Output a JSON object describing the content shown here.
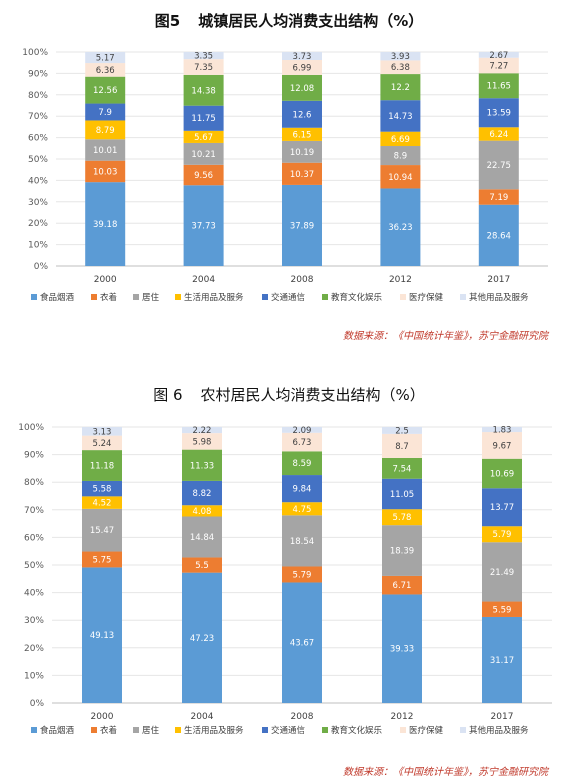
{
  "charts": [
    {
      "figure_label": "图5",
      "title": "城镇居民人均消费支出结构（%）",
      "source": "数据来源：《中国统计年鉴》，苏宁金融研究院"
    },
    {
      "figure_label": "图 6",
      "title": "农村居民人均消费支出结构（%）",
      "source": "数据来源：《中国统计年鉴》，苏宁金融研究院"
    }
  ],
  "colors": {
    "食品烟酒": "#5b9bd5",
    "衣着": "#ed7d31",
    "居住": "#a5a5a5",
    "生活用品及服务": "#ffc000",
    "交通通信": "#4472c4",
    "教育文化娱乐": "#70ad47",
    "医疗保健": "#fbe5d6",
    "其他用品及服务": "#dae3f3"
  },
  "chart_data": [
    {
      "type": "bar",
      "stacked": true,
      "title": "城镇居民人均消费支出结构（%）",
      "categories": [
        "2000",
        "2004",
        "2008",
        "2012",
        "2017"
      ],
      "ylim": [
        0,
        100
      ],
      "yticks": [
        "0%",
        "10%",
        "20%",
        "30%",
        "40%",
        "50%",
        "60%",
        "70%",
        "80%",
        "90%",
        "100%"
      ],
      "legend_position": "bottom",
      "series": [
        {
          "name": "食品烟酒",
          "values": [
            39.18,
            37.73,
            37.89,
            36.23,
            28.64
          ],
          "labels": [
            "39.18",
            "37.73",
            "37.89",
            "36.23",
            "28.64"
          ]
        },
        {
          "name": "衣着",
          "values": [
            10.03,
            9.56,
            10.37,
            10.94,
            7.19
          ],
          "labels": [
            "10.03",
            "9.56",
            "10.37",
            "10.94",
            "7.19"
          ]
        },
        {
          "name": "居住",
          "values": [
            10.01,
            10.21,
            10.19,
            8.9,
            22.75
          ],
          "labels": [
            "10.01",
            "10.21",
            "10.19",
            "8.9",
            "22.75"
          ]
        },
        {
          "name": "生活用品及服务",
          "values": [
            8.79,
            5.67,
            6.15,
            6.69,
            6.24
          ],
          "labels": [
            "8.79",
            "5.67",
            "6.15",
            "6.69",
            "6.24"
          ]
        },
        {
          "name": "交通通信",
          "values": [
            7.9,
            11.75,
            12.6,
            14.73,
            13.59
          ],
          "labels": [
            "7.9",
            "11.75",
            "12.6",
            "14.73",
            "13.59"
          ]
        },
        {
          "name": "教育文化娱乐",
          "values": [
            12.56,
            14.38,
            12.08,
            12.2,
            11.65
          ],
          "labels": [
            "12.56",
            "14.38",
            "12.08",
            "12.2",
            "11.65"
          ]
        },
        {
          "name": "医疗保健",
          "values": [
            6.36,
            7.35,
            6.99,
            6.38,
            7.27
          ],
          "labels": [
            "6.36",
            "7.35",
            "6.99",
            "6.38",
            "7.27"
          ]
        },
        {
          "name": "其他用品及服务",
          "values": [
            5.17,
            3.35,
            3.73,
            3.93,
            2.67
          ],
          "labels": [
            "5.17",
            "3.35",
            "3.73",
            "3.93",
            "2.67"
          ]
        }
      ]
    },
    {
      "type": "bar",
      "stacked": true,
      "title": "农村居民人均消费支出结构（%）",
      "categories": [
        "2000",
        "2004",
        "2008",
        "2012",
        "2017"
      ],
      "ylim": [
        0,
        100
      ],
      "yticks": [
        "0%",
        "10%",
        "20%",
        "30%",
        "40%",
        "50%",
        "60%",
        "70%",
        "80%",
        "90%",
        "100%"
      ],
      "legend_position": "bottom",
      "series": [
        {
          "name": "食品烟酒",
          "values": [
            49.13,
            47.23,
            43.67,
            39.33,
            31.17
          ],
          "labels": [
            "49.13",
            "47.23",
            "43.67",
            "39.33",
            "31.17"
          ]
        },
        {
          "name": "衣着",
          "values": [
            5.75,
            5.5,
            5.79,
            6.71,
            5.59
          ],
          "labels": [
            "5.75",
            "5.5",
            "5.79",
            "6.71",
            "5.59"
          ]
        },
        {
          "name": "居住",
          "values": [
            15.47,
            14.84,
            18.54,
            18.39,
            21.49
          ],
          "labels": [
            "15.47",
            "14.84",
            "18.54",
            "18.39",
            "21.49"
          ]
        },
        {
          "name": "生活用品及服务",
          "values": [
            4.52,
            4.08,
            4.75,
            5.78,
            5.79
          ],
          "labels": [
            "4.52",
            "4.08",
            "4.75",
            "5.78",
            "5.79"
          ]
        },
        {
          "name": "交通通信",
          "values": [
            5.58,
            8.82,
            9.84,
            11.05,
            13.77
          ],
          "labels": [
            "5.58",
            "8.82",
            "9.84",
            "11.05",
            "13.77"
          ]
        },
        {
          "name": "教育文化娱乐",
          "values": [
            11.18,
            11.33,
            8.59,
            7.54,
            10.69
          ],
          "labels": [
            "11.18",
            "11.33",
            "8.59",
            "7.54",
            "10.69"
          ]
        },
        {
          "name": "医疗保健",
          "values": [
            5.24,
            5.98,
            6.73,
            8.7,
            9.67
          ],
          "labels": [
            "5.24",
            "5.98",
            "6.73",
            "8.7",
            "9.67"
          ]
        },
        {
          "name": "其他用品及服务",
          "values": [
            3.13,
            2.22,
            2.09,
            2.5,
            1.83
          ],
          "labels": [
            "3.13",
            "2.22",
            "2.09",
            "2.5",
            "1.83"
          ]
        }
      ]
    }
  ]
}
